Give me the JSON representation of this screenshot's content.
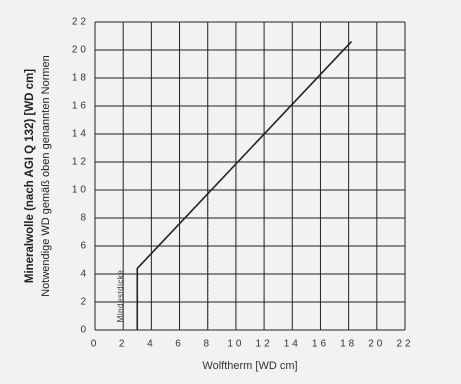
{
  "chart_data": {
    "type": "line",
    "xlabel": "Wolftherm [WD cm]",
    "ylabel": "Mineralwolle (nach AGI Q 132) [WD cm]",
    "ylabel2": "Notwendige WD gemäß oben genannten Normen",
    "annotation": "Mindestdicke",
    "xlim": [
      0,
      22
    ],
    "xticks": [
      0,
      2,
      4,
      6,
      8,
      10,
      12,
      14,
      16,
      18,
      20,
      22
    ],
    "ylim": [
      0,
      22
    ],
    "yticks": [
      0,
      2,
      4,
      6,
      8,
      10,
      12,
      14,
      16,
      18,
      20,
      22
    ],
    "grid": true,
    "series": [
      {
        "x": [
          3,
          3,
          18.2
        ],
        "values": [
          0,
          4.4,
          20.6
        ],
        "color": "#222222"
      }
    ],
    "guides": [
      {
        "x": [
          0,
          8
        ],
        "values": [
          10,
          10
        ]
      },
      {
        "x": [
          8,
          8
        ],
        "values": [
          10,
          0
        ]
      }
    ]
  }
}
